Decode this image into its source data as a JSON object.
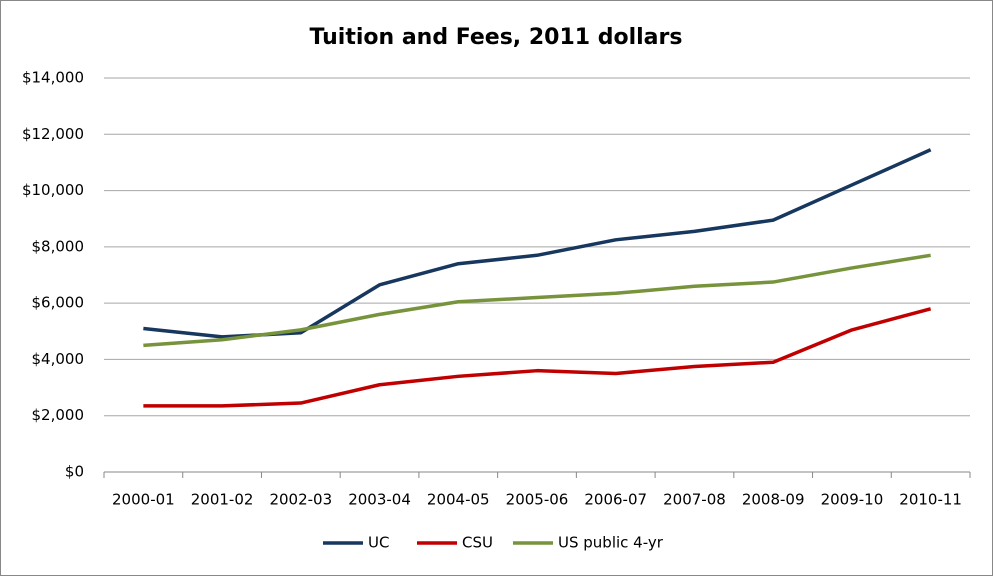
{
  "chart_data": {
    "type": "line",
    "title": "Tuition and Fees, 2011 dollars",
    "categories": [
      "2000-01",
      "2001-02",
      "2002-03",
      "2003-04",
      "2004-05",
      "2005-06",
      "2006-07",
      "2007-08",
      "2008-09",
      "2009-10",
      "2010-11"
    ],
    "series": [
      {
        "name": "UC",
        "color": "#17375e",
        "values": [
          5100,
          4800,
          4950,
          6650,
          7400,
          7700,
          8250,
          8550,
          8950,
          10200,
          11450
        ]
      },
      {
        "name": "CSU",
        "color": "#c00000",
        "values": [
          2350,
          2350,
          2450,
          3100,
          3400,
          3600,
          3500,
          3750,
          3900,
          5050,
          5800
        ]
      },
      {
        "name": "US public 4-yr",
        "color": "#77933c",
        "values": [
          4500,
          4700,
          5050,
          5600,
          6050,
          6200,
          6350,
          6600,
          6750,
          7250,
          7700
        ]
      }
    ],
    "ylim": [
      0,
      14000
    ],
    "yticks": [
      {
        "value": 0,
        "label": "$0"
      },
      {
        "value": 2000,
        "label": "$2,000"
      },
      {
        "value": 4000,
        "label": "$4,000"
      },
      {
        "value": 6000,
        "label": "$6,000"
      },
      {
        "value": 8000,
        "label": "$8,000"
      },
      {
        "value": 10000,
        "label": "$10,000"
      },
      {
        "value": 12000,
        "label": "$12,000"
      },
      {
        "value": 14000,
        "label": "$14,000"
      }
    ],
    "grid": true,
    "legend": "bottom"
  }
}
